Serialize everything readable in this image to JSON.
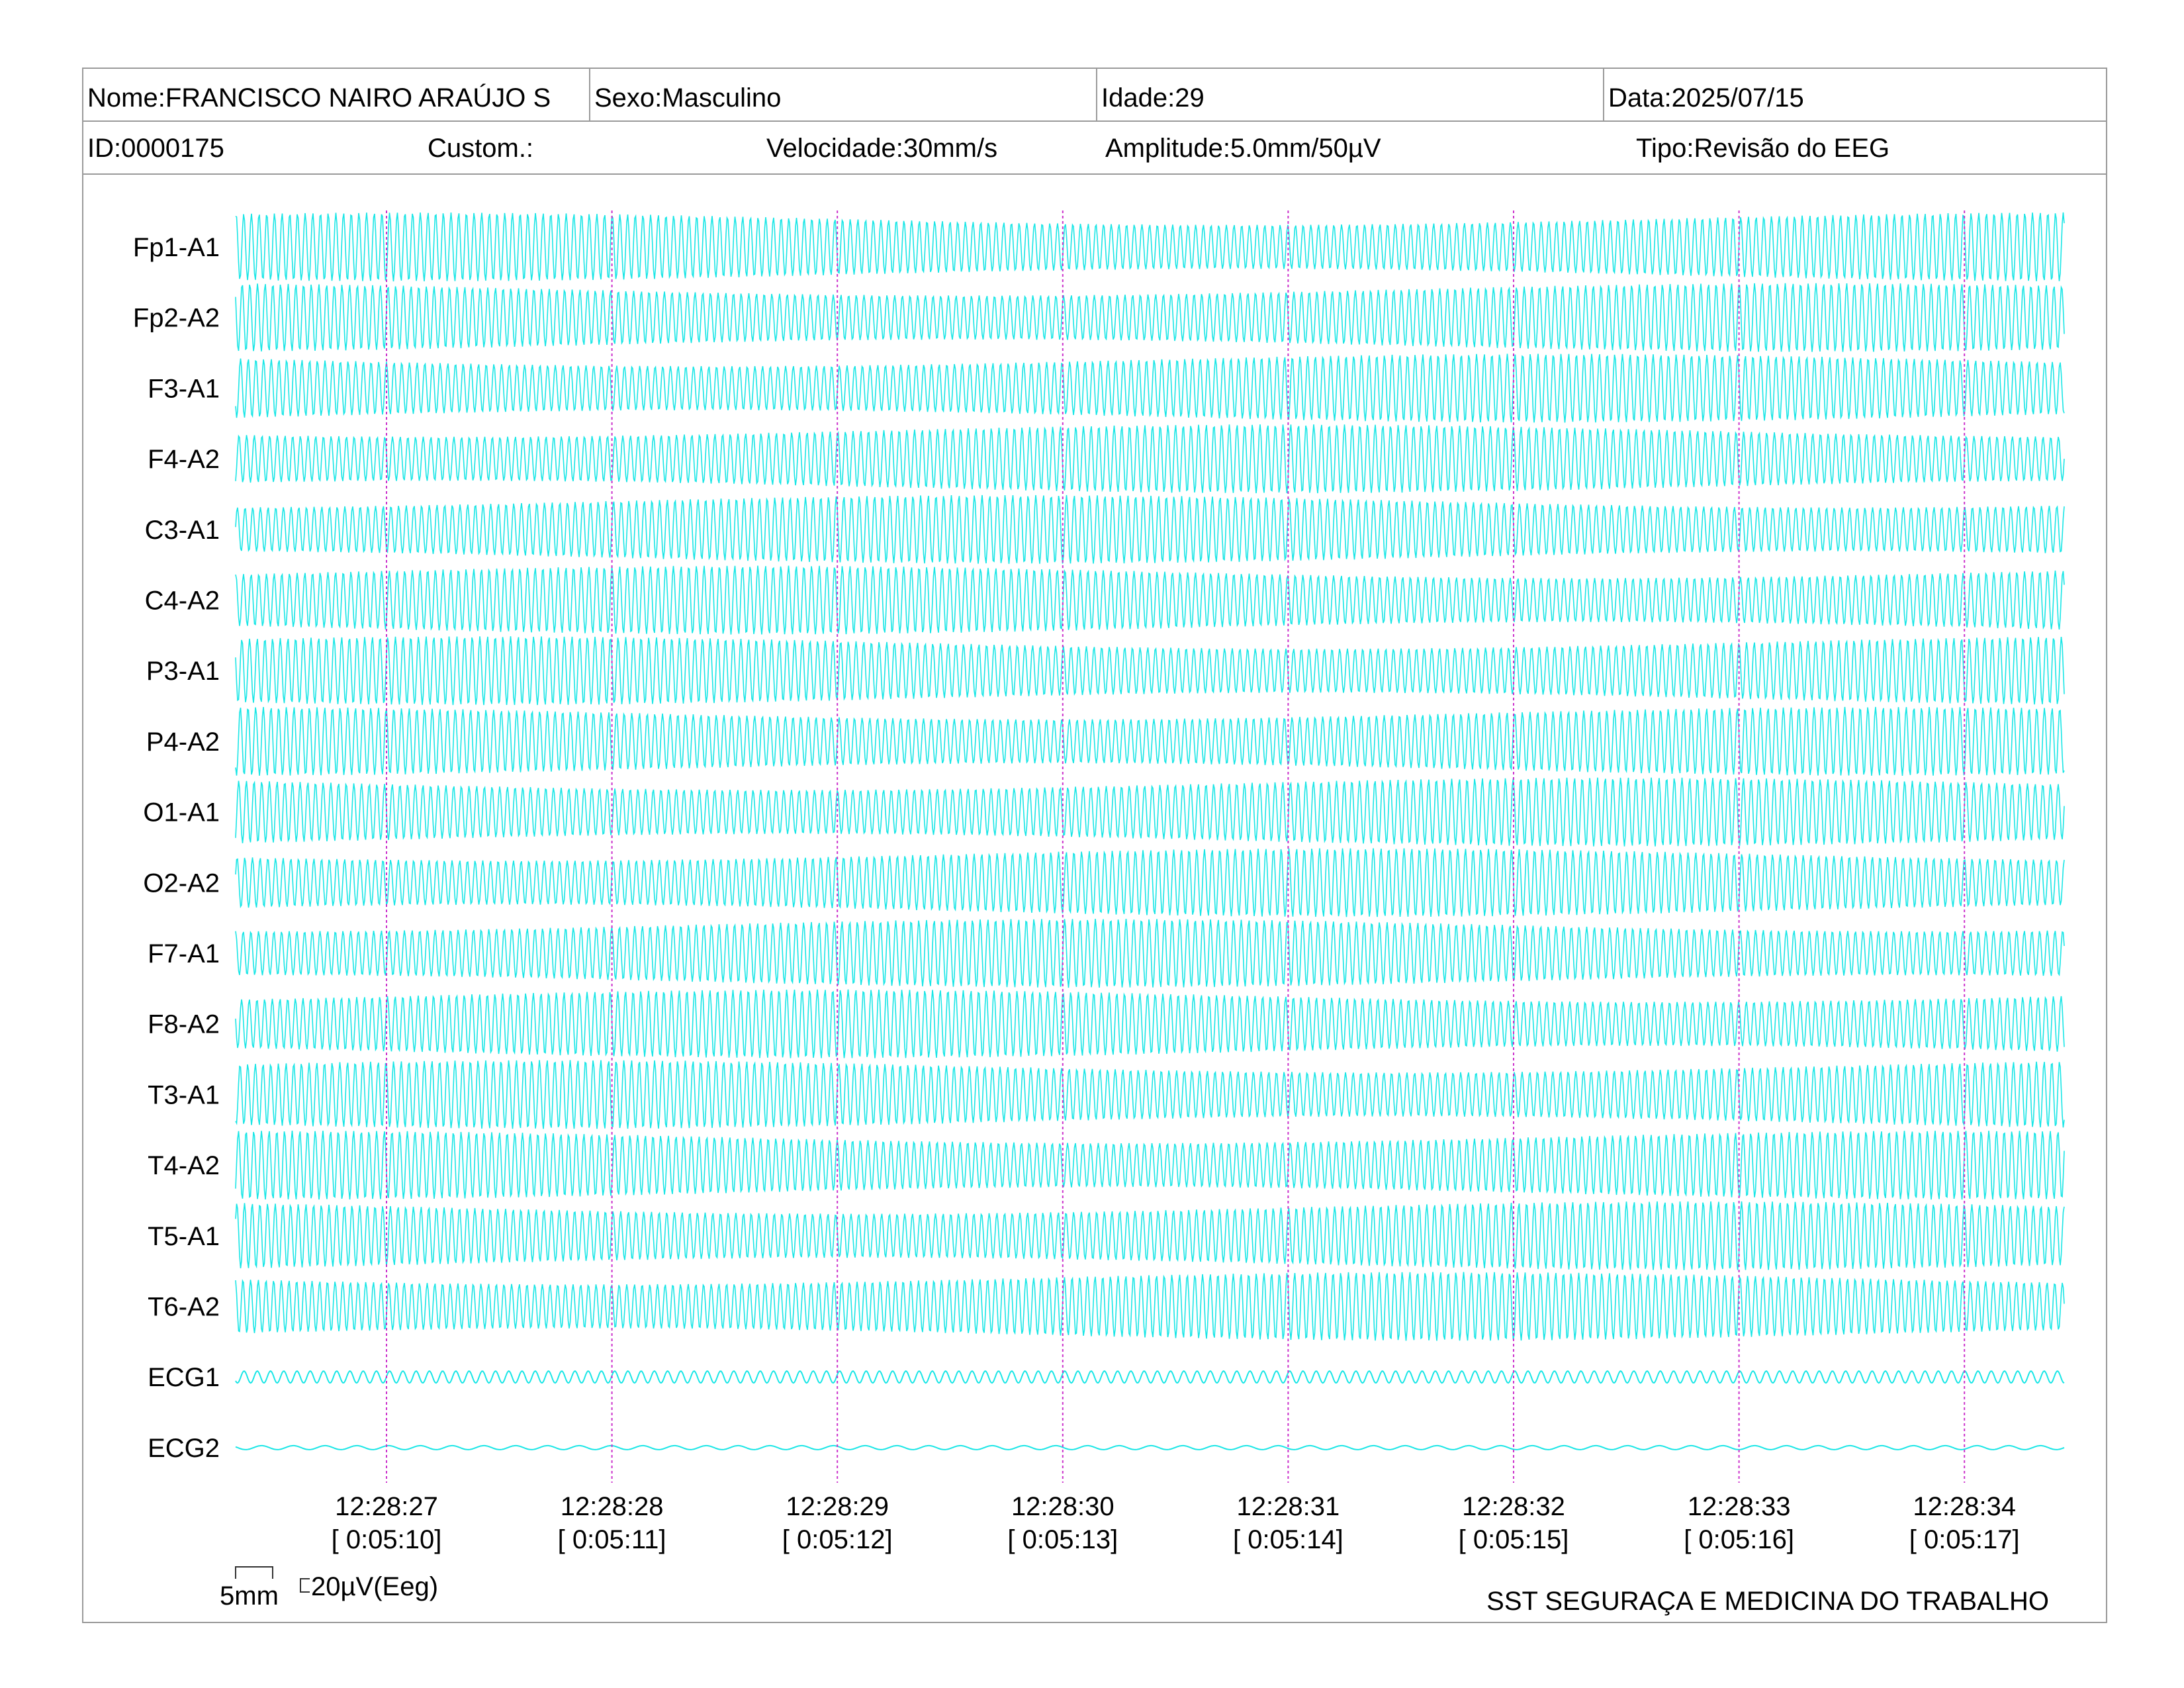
{
  "header": {
    "nome": "Nome:FRANCISCO NAIRO ARAÚJO S",
    "sexo": "Sexo:Masculino",
    "idade": "Idade:29",
    "data": "Data:2025/07/15",
    "id": "ID:0000175",
    "custom": "Custom.:",
    "velocidade": "Velocidade:30mm/s",
    "amplitude": "Amplitude:5.0mm/50µV",
    "tipo": "Tipo:Revisão do EEG"
  },
  "footer": {
    "scale_time": "5mm",
    "scale_amp": "20µV(Eeg)",
    "company": "SST SEGURAÇA E MEDICINA DO TRABALHO"
  },
  "colors": {
    "trace": "#19e6e6",
    "marker": "#cc33cc",
    "border": "#9a9a9a"
  },
  "chart_data": {
    "type": "line",
    "channels": [
      "Fp1-A1",
      "Fp2-A2",
      "F3-A1",
      "F4-A2",
      "C3-A1",
      "C4-A2",
      "P3-A1",
      "P4-A2",
      "O1-A1",
      "O2-A2",
      "F7-A1",
      "F8-A2",
      "T3-A1",
      "T4-A2",
      "T5-A1",
      "T6-A2",
      "ECG1",
      "ECG2"
    ],
    "time_marks": [
      {
        "clock": "12:28:27",
        "elapsed": "[ 0:05:10]"
      },
      {
        "clock": "12:28:28",
        "elapsed": "[ 0:05:11]"
      },
      {
        "clock": "12:28:29",
        "elapsed": "[ 0:05:12]"
      },
      {
        "clock": "12:28:30",
        "elapsed": "[ 0:05:13]"
      },
      {
        "clock": "12:28:31",
        "elapsed": "[ 0:05:14]"
      },
      {
        "clock": "12:28:32",
        "elapsed": "[ 0:05:15]"
      },
      {
        "clock": "12:28:33",
        "elapsed": "[ 0:05:16]"
      },
      {
        "clock": "12:28:34",
        "elapsed": "[ 0:05:17]"
      }
    ],
    "grid": false
  }
}
